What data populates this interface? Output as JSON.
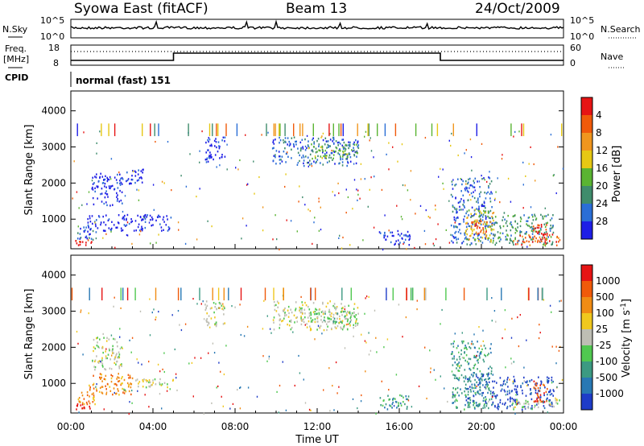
{
  "header": {
    "station": "Syowa East (fitACF)",
    "beam": "Beam 13",
    "date": "24/Oct/2009"
  },
  "top_panels": {
    "nsky_label": "N.Sky",
    "nsearch_label": "N.Search",
    "nsky_tick_top": "10^5",
    "nsky_tick_bottom": "10^0",
    "nsearch_tick_top": "10^5",
    "nsearch_tick_bottom": "10^0",
    "freq_label_1": "Freq.",
    "freq_label_2": "[MHz]",
    "freq_tick_top": "18",
    "freq_tick_bottom": "8",
    "nave_label": "Nave",
    "nave_tick_top": "60",
    "nave_tick_bottom": "0",
    "cpid_label": "CPID",
    "cpid_value": "normal (fast) 151"
  },
  "chart_data": [
    {
      "type": "heatmap",
      "name": "power",
      "ylabel": "Slant Range [km]",
      "ylim": [
        180,
        4550
      ],
      "yticks": [
        "1000",
        "2000",
        "3000",
        "4000"
      ],
      "xlim": [
        0,
        24
      ],
      "colorbar_label": "Power [dB]",
      "colorbar_ticks": [
        "4",
        "8",
        "12",
        "16",
        "20",
        "24",
        "28"
      ],
      "colors": [
        "#1e1ee6",
        "#2a6ed6",
        "#3f8c6c",
        "#5ab432",
        "#e6c814",
        "#f0961e",
        "#f05a0a",
        "#e61414"
      ],
      "regions": [
        {
          "t0": 0.2,
          "t1": 1.0,
          "r0": 300,
          "r1": 450,
          "v": 7
        },
        {
          "t0": 0.3,
          "t1": 1.2,
          "r0": 450,
          "r1": 800,
          "v": 1
        },
        {
          "t0": 0.8,
          "t1": 5.0,
          "r0": 700,
          "r1": 1150,
          "v": 0
        },
        {
          "t0": 1.0,
          "t1": 2.5,
          "r0": 1400,
          "r1": 2300,
          "v": 0
        },
        {
          "t0": 2.5,
          "t1": 3.5,
          "r0": 2000,
          "r1": 2400,
          "v": 0
        },
        {
          "t0": 6.5,
          "t1": 7.5,
          "r0": 2600,
          "r1": 3300,
          "v": 0
        },
        {
          "t0": 9.8,
          "t1": 14.0,
          "r0": 2500,
          "r1": 3300,
          "v": 1
        },
        {
          "t0": 11.5,
          "t1": 14.0,
          "r0": 2700,
          "r1": 3100,
          "v": 3
        },
        {
          "t0": 15.0,
          "t1": 16.5,
          "r0": 300,
          "r1": 700,
          "v": 0
        },
        {
          "t0": 18.5,
          "t1": 20.5,
          "r0": 300,
          "r1": 2200,
          "v": 1
        },
        {
          "t0": 19.2,
          "t1": 20.6,
          "r0": 400,
          "r1": 1300,
          "v": 4
        },
        {
          "t0": 19.5,
          "t1": 20.3,
          "r0": 600,
          "r1": 1000,
          "v": 6
        },
        {
          "t0": 20.5,
          "t1": 23.5,
          "r0": 300,
          "r1": 1200,
          "v": 2
        },
        {
          "t0": 21.5,
          "t1": 23.8,
          "r0": 300,
          "r1": 600,
          "v": 6
        },
        {
          "t0": 22.5,
          "t1": 23.2,
          "r0": 500,
          "r1": 900,
          "v": 7
        }
      ]
    },
    {
      "type": "heatmap",
      "name": "velocity",
      "ylabel": "Slant Range [km]",
      "ylim": [
        180,
        4550
      ],
      "yticks": [
        "1000",
        "2000",
        "3000",
        "4000"
      ],
      "xlim": [
        0,
        24
      ],
      "xticks": [
        "00:00",
        "04:00",
        "08:00",
        "12:00",
        "16:00",
        "20:00",
        "00:00"
      ],
      "xlabel": "Time UT",
      "colorbar_label": "Velocity [m s^-1]",
      "colorbar_ticks": [
        "1000",
        "500",
        "100",
        "25",
        "-25",
        "-100",
        "-500",
        "-1000"
      ],
      "colors": [
        "#1e3cc8",
        "#2878b4",
        "#3c9a82",
        "#50c850",
        "#bebeb4",
        "#f0c81e",
        "#f08c14",
        "#f05a0a",
        "#e61414"
      ],
      "regions": [
        {
          "t0": 0.2,
          "t1": 1.0,
          "r0": 300,
          "r1": 450,
          "v": 8
        },
        {
          "t0": 0.3,
          "t1": 1.2,
          "r0": 450,
          "r1": 800,
          "v": 6
        },
        {
          "t0": 0.8,
          "t1": 3.0,
          "r0": 700,
          "r1": 1300,
          "v": 6
        },
        {
          "t0": 3.0,
          "t1": 5.0,
          "r0": 900,
          "r1": 1150,
          "v": 4
        },
        {
          "t0": 1.0,
          "t1": 2.5,
          "r0": 1400,
          "r1": 2300,
          "v": 4
        },
        {
          "t0": 6.5,
          "t1": 7.5,
          "r0": 2600,
          "r1": 3300,
          "v": 4
        },
        {
          "t0": 9.8,
          "t1": 14.0,
          "r0": 2500,
          "r1": 3300,
          "v": 4
        },
        {
          "t0": 11.5,
          "t1": 14.0,
          "r0": 2700,
          "r1": 3100,
          "v": 3
        },
        {
          "t0": 15.0,
          "t1": 16.5,
          "r0": 300,
          "r1": 700,
          "v": 2
        },
        {
          "t0": 18.5,
          "t1": 20.5,
          "r0": 300,
          "r1": 2200,
          "v": 2
        },
        {
          "t0": 19.2,
          "t1": 20.6,
          "r0": 400,
          "r1": 1300,
          "v": 1
        },
        {
          "t0": 20.5,
          "t1": 23.5,
          "r0": 300,
          "r1": 1200,
          "v": 0
        },
        {
          "t0": 21.5,
          "t1": 23.8,
          "r0": 300,
          "r1": 600,
          "v": 4
        },
        {
          "t0": 22.5,
          "t1": 23.2,
          "r0": 500,
          "r1": 1100,
          "v": 7
        }
      ]
    }
  ]
}
